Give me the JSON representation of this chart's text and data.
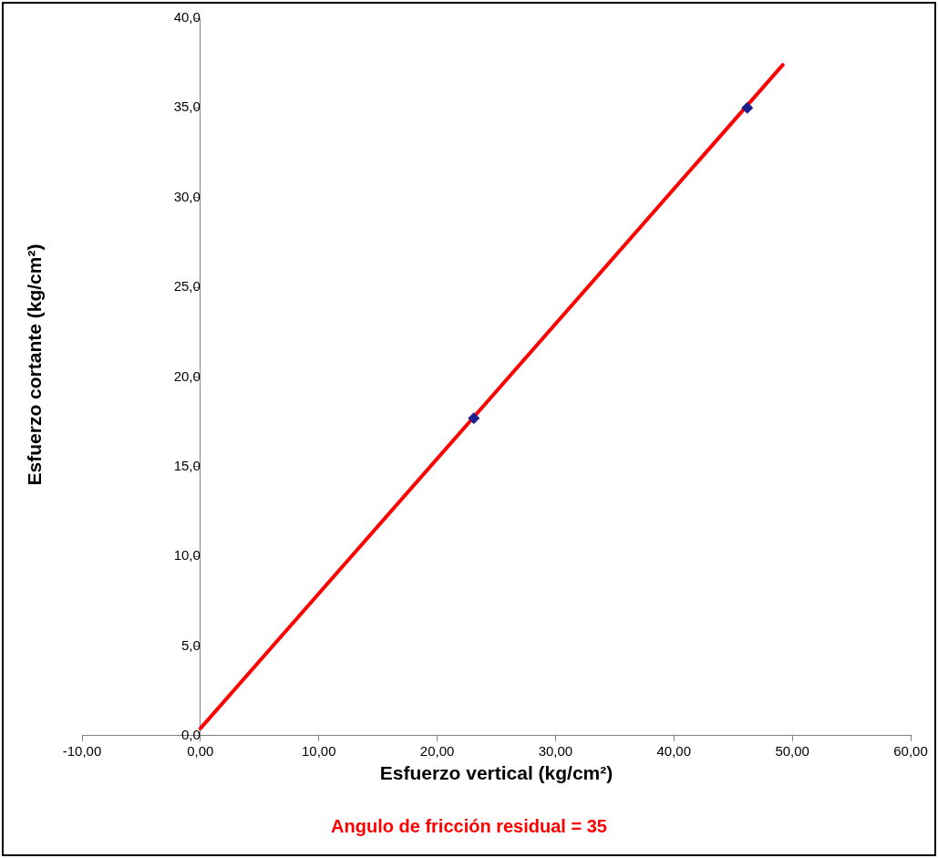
{
  "chart_data": {
    "type": "scatter",
    "xlabel": "Esfuerzo vertical (kg/cm²)",
    "ylabel": "Esfuerzo cortante (kg/cm²)",
    "annotations": [
      "Angulo de fricción residual = 35"
    ],
    "series": [
      {
        "color": "#1f1f8f",
        "x": [
          23.1,
          46.2
        ],
        "values": [
          17.7,
          35.0
        ],
        "marker": "diamond"
      },
      {
        "type": "line",
        "color": "#ff0000",
        "x": [
          0,
          49.2
        ],
        "values": [
          0.4,
          37.4
        ],
        "marker": "none"
      }
    ],
    "xlim": [
      -10,
      60
    ],
    "xticks": [
      {
        "value": -10,
        "label": "-10,00"
      },
      {
        "value": 0,
        "label": "0,00"
      },
      {
        "value": 10,
        "label": "10,00"
      },
      {
        "value": 20,
        "label": "20,00"
      },
      {
        "value": 30,
        "label": "30,00"
      },
      {
        "value": 40,
        "label": "40,00"
      },
      {
        "value": 50,
        "label": "50,00"
      },
      {
        "value": 60,
        "label": "60,00"
      }
    ],
    "ylim": [
      0,
      40
    ],
    "yticks": [
      {
        "value": 0,
        "label": "0,0"
      },
      {
        "value": 5,
        "label": "5,0"
      },
      {
        "value": 10,
        "label": "10,0"
      },
      {
        "value": 15,
        "label": "15,0"
      },
      {
        "value": 20,
        "label": "20,0"
      },
      {
        "value": 25,
        "label": "25,0"
      },
      {
        "value": 30,
        "label": "30,0"
      },
      {
        "value": 35,
        "label": "35,0"
      },
      {
        "value": 40,
        "label": "40,0"
      }
    ],
    "grid": false,
    "legend": false
  }
}
